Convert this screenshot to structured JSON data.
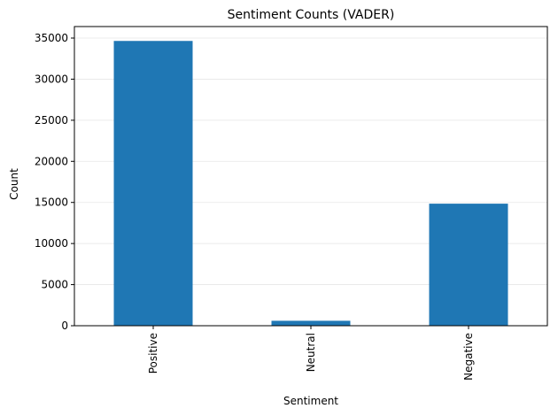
{
  "chart_data": {
    "type": "bar",
    "title": "Sentiment Counts (VADER)",
    "xlabel": "Sentiment",
    "ylabel": "Count",
    "categories": [
      "Positive",
      "Neutral",
      "Negative"
    ],
    "values": [
      34650,
      600,
      14850
    ],
    "ylim": [
      0,
      36400
    ],
    "yticks": [
      0,
      5000,
      10000,
      15000,
      20000,
      25000,
      30000,
      35000
    ],
    "grid": true,
    "bar_color": "#1f77b4",
    "tick_label_rotation": "vertical"
  }
}
